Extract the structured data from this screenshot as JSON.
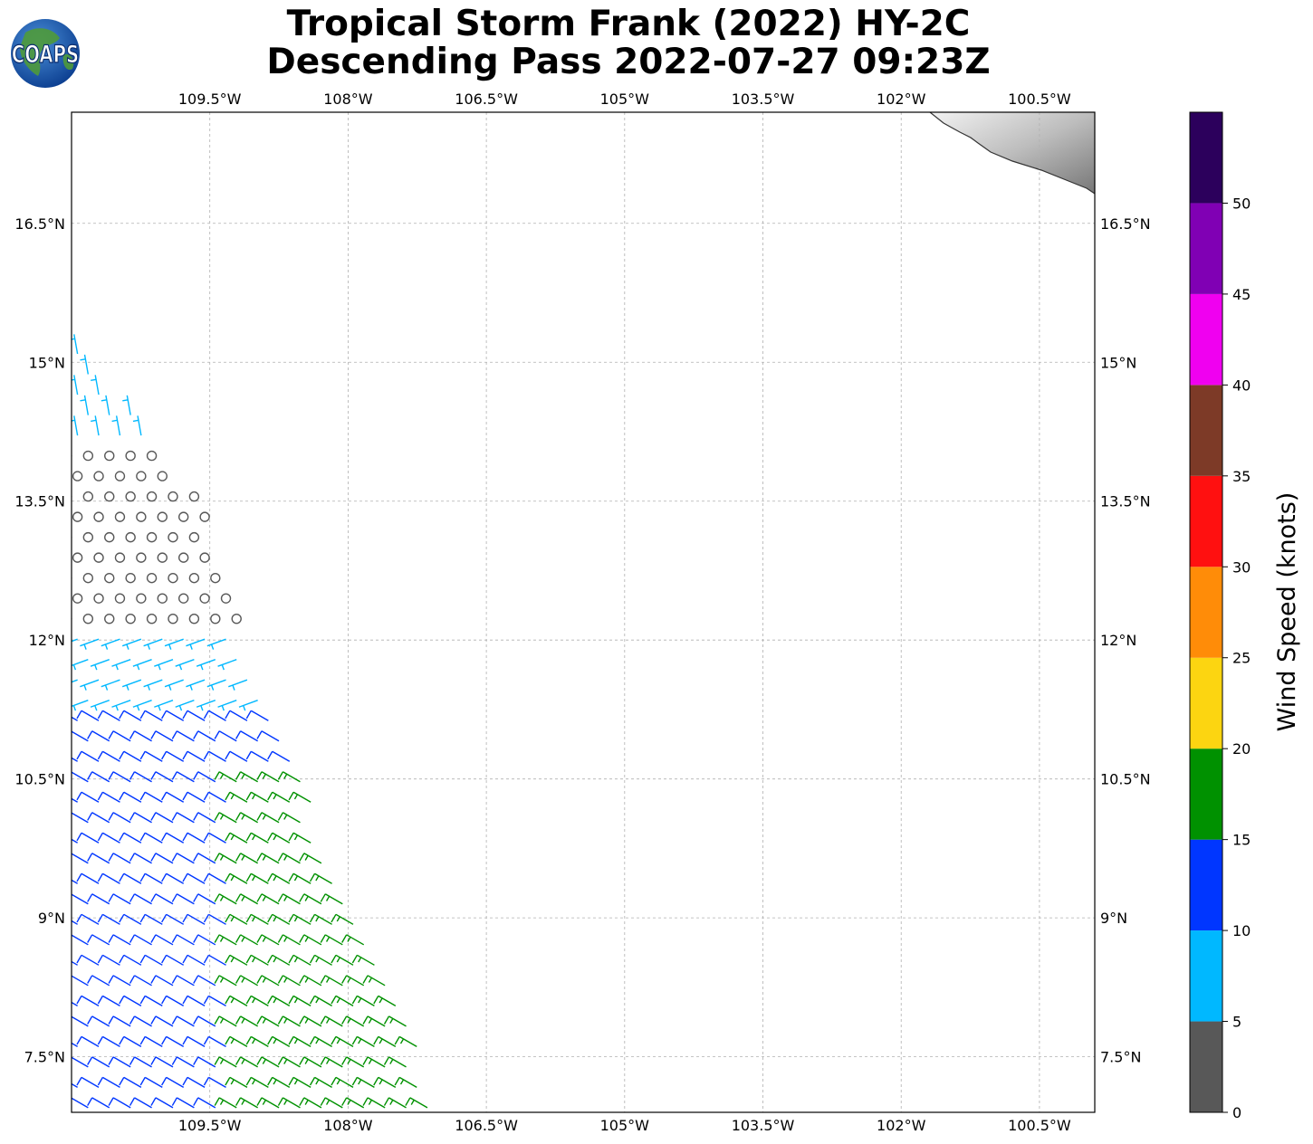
{
  "title": {
    "line1": "Tropical Storm Frank (2022) HY-2C",
    "line2": "Descending Pass 2022-07-27 09:23Z"
  },
  "logo": {
    "text": "COAPS",
    "icon": "globe-icon"
  },
  "map": {
    "lon_ticks": [
      "109.5°W",
      "108°W",
      "106.5°W",
      "105°W",
      "103.5°W",
      "102°W",
      "100.5°W"
    ],
    "lon_values": [
      -109.5,
      -108,
      -106.5,
      -105,
      -103.5,
      -102,
      -100.5
    ],
    "lat_ticks": [
      "16.5°N",
      "15°N",
      "13.5°N",
      "12°N",
      "10.5°N",
      "9°N",
      "7.5°N"
    ],
    "lat_values": [
      16.5,
      15,
      13.5,
      12,
      10.5,
      9,
      7.5
    ],
    "lon_range": [
      -111.0,
      -99.9
    ],
    "lat_range": [
      6.9,
      17.7
    ],
    "gridlines": true,
    "land_shading": "grayscale terrain, top-right"
  },
  "colorbar": {
    "label": "Wind Speed (knots)",
    "ticks": [
      "0",
      "5",
      "10",
      "15",
      "20",
      "25",
      "30",
      "35",
      "40",
      "45",
      "50"
    ],
    "range": [
      0,
      55
    ],
    "bins": [
      {
        "from": 0,
        "to": 5,
        "color": "#585858"
      },
      {
        "from": 5,
        "to": 10,
        "color": "#00b8ff"
      },
      {
        "from": 10,
        "to": 15,
        "color": "#0036ff"
      },
      {
        "from": 15,
        "to": 20,
        "color": "#009100"
      },
      {
        "from": 20,
        "to": 25,
        "color": "#fcd511"
      },
      {
        "from": 25,
        "to": 30,
        "color": "#ff8c08"
      },
      {
        "from": 30,
        "to": 35,
        "color": "#ff1010"
      },
      {
        "from": 35,
        "to": 40,
        "color": "#7d3a27"
      },
      {
        "from": 40,
        "to": 45,
        "color": "#f000f0"
      },
      {
        "from": 45,
        "to": 50,
        "color": "#8000b4"
      },
      {
        "from": 50,
        "to": 55,
        "color": "#2c005c"
      }
    ]
  },
  "chart_data": {
    "type": "scatter",
    "description_kind": "wind barbs along satellite swath",
    "swath_edge": [
      [
        -111.0,
        15.3
      ],
      [
        -109.6,
        13.5
      ],
      [
        -109.1,
        12.0
      ],
      [
        -108.3,
        10.0
      ],
      [
        -107.5,
        8.5
      ],
      [
        -107.0,
        6.9
      ]
    ],
    "wind_bands": [
      {
        "lat_min": 14.0,
        "lat_max": 15.3,
        "speed_kt": 7,
        "color": "#00b8ff"
      },
      {
        "lat_min": 12.2,
        "lat_max": 14.0,
        "speed_kt": 2,
        "color": "#585858"
      },
      {
        "lat_min": 11.2,
        "lat_max": 12.2,
        "speed_kt": 7,
        "color": "#00b8ff"
      },
      {
        "lat_min": 6.9,
        "lat_max": 11.2,
        "speed_kt": 13,
        "color": "#0036ff"
      },
      {
        "lat_min": 6.9,
        "lat_max": 10.6,
        "speed_kt": 17,
        "color": "#009100",
        "lon_min": -109.3
      }
    ]
  }
}
